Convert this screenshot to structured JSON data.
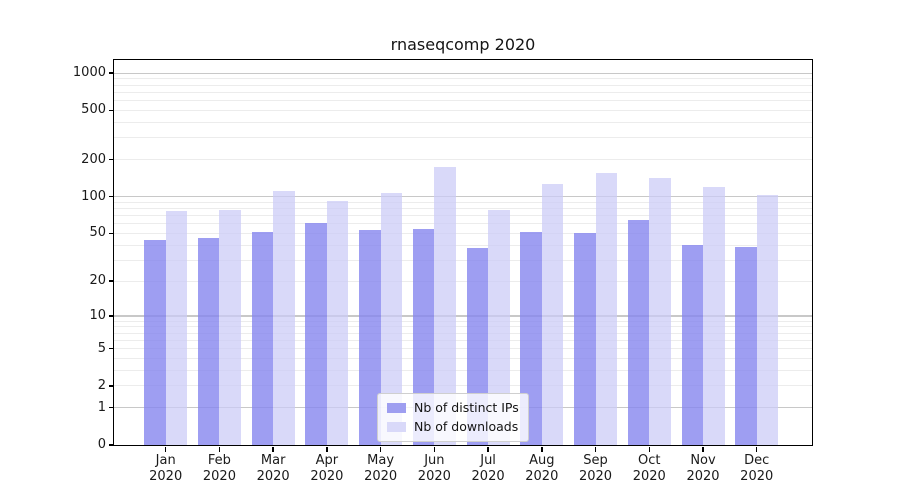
{
  "chart_data": {
    "type": "bar",
    "title": "rnaseqcomp 2020",
    "categories": [
      "Jan",
      "Feb",
      "Mar",
      "Apr",
      "May",
      "Jun",
      "Jul",
      "Aug",
      "Sep",
      "Oct",
      "Nov",
      "Dec"
    ],
    "category_year": "2020",
    "series": [
      {
        "name": "Nb of distinct IPs",
        "color": "rgba(134,134,239,0.8)",
        "legend_color": "#9e9ef0",
        "values": [
          44,
          46,
          51,
          61,
          53,
          54,
          38,
          51,
          50,
          65,
          40,
          39
        ]
      },
      {
        "name": "Nb of downloads",
        "color": "rgba(203,203,247,0.72)",
        "legend_color": "#d9d9f9",
        "values": [
          77,
          78,
          112,
          92,
          107,
          173,
          78,
          127,
          157,
          141,
          120,
          103
        ]
      }
    ],
    "xlabel": "",
    "ylabel": "",
    "yscale": "log1p",
    "ylim": [
      0,
      1280
    ],
    "yticks": [
      0,
      1,
      2,
      5,
      10,
      20,
      50,
      100,
      200,
      500,
      1000
    ],
    "grid": {
      "on": true,
      "major_values": [
        1,
        10,
        100,
        1000
      ],
      "minor_values": [
        2,
        3,
        4,
        5,
        6,
        7,
        8,
        9,
        20,
        30,
        40,
        50,
        60,
        70,
        80,
        90,
        200,
        300,
        400,
        500,
        600,
        700,
        800,
        900
      ]
    },
    "legend_position": "lower center",
    "colors": {
      "axis": "#000000",
      "grid_major": "#c8c8c8",
      "grid_minor": "#ececec",
      "background": "#ffffff"
    }
  }
}
